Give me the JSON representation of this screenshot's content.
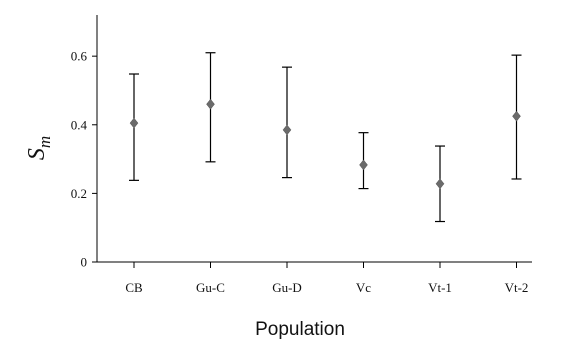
{
  "chart_data": {
    "type": "scatter",
    "categories": [
      "CB",
      "Gu-C",
      "Gu-D",
      "Vc",
      "Vt-1",
      "Vt-2"
    ],
    "values": [
      0.405,
      0.46,
      0.385,
      0.283,
      0.228,
      0.425
    ],
    "lower": [
      0.238,
      0.292,
      0.246,
      0.214,
      0.118,
      0.242
    ],
    "upper": [
      0.548,
      0.61,
      0.568,
      0.377,
      0.338,
      0.603
    ],
    "ylabel_main": "S",
    "ylabel_sub": "m",
    "xlabel": "Population",
    "ylim": [
      0,
      0.72
    ],
    "yticks": [
      0,
      0.2,
      0.4,
      0.6
    ],
    "ytick_labels": [
      "0",
      "0.2",
      "0.4",
      "0.6"
    ],
    "grid": false,
    "marker_color": "#6b6b6b",
    "error_bar_color": "#000000"
  }
}
